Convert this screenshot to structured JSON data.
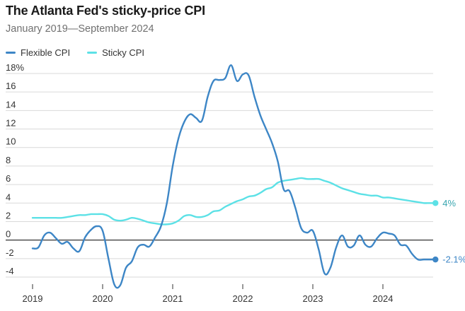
{
  "title": "The Atlanta Fed's sticky-price CPI",
  "subtitle": "January 2019—September 2024",
  "legend": {
    "flexible_label": "Flexible CPI",
    "sticky_label": "Sticky CPI"
  },
  "colors": {
    "flexible": "#3d86c6",
    "sticky": "#5ce1e6",
    "grid": "#d9d9d9",
    "zero_line": "#333333",
    "axis_text": "#333333",
    "end_label_flexible": "#3d86c6",
    "end_label_sticky": "#3aa6b0"
  },
  "chart_data": {
    "type": "line",
    "title": "The Atlanta Fed's sticky-price CPI",
    "subtitle": "January 2019—September 2024",
    "xlabel": "",
    "ylabel": "",
    "x_range": [
      2019.0,
      2024.75
    ],
    "ylim": [
      -4,
      18
    ],
    "y_ticks": [
      -4,
      -2,
      0,
      2,
      4,
      6,
      8,
      10,
      12,
      14,
      16,
      18
    ],
    "y_tick_labels": [
      "-4",
      "-2",
      "0",
      "2",
      "4",
      "6",
      "8",
      "10",
      "12",
      "14",
      "16",
      "18%"
    ],
    "x_ticks": [
      2019,
      2020,
      2021,
      2022,
      2023,
      2024
    ],
    "x_tick_labels": [
      "2019",
      "2020",
      "2021",
      "2022",
      "2023",
      "2024"
    ],
    "grid": true,
    "legend_position": "top-left",
    "series": [
      {
        "name": "Flexible CPI",
        "end_label": "-2.1%",
        "x": [
          2019.0,
          2019.083,
          2019.167,
          2019.25,
          2019.333,
          2019.417,
          2019.5,
          2019.583,
          2019.667,
          2019.75,
          2019.833,
          2019.917,
          2020.0,
          2020.083,
          2020.167,
          2020.25,
          2020.333,
          2020.417,
          2020.5,
          2020.583,
          2020.667,
          2020.75,
          2020.833,
          2020.917,
          2021.0,
          2021.083,
          2021.167,
          2021.25,
          2021.333,
          2021.417,
          2021.5,
          2021.583,
          2021.667,
          2021.75,
          2021.833,
          2021.917,
          2022.0,
          2022.083,
          2022.167,
          2022.25,
          2022.333,
          2022.417,
          2022.5,
          2022.583,
          2022.667,
          2022.75,
          2022.833,
          2022.917,
          2023.0,
          2023.083,
          2023.167,
          2023.25,
          2023.333,
          2023.417,
          2023.5,
          2023.583,
          2023.667,
          2023.75,
          2023.833,
          2023.917,
          2024.0,
          2024.083,
          2024.167,
          2024.25,
          2024.333,
          2024.417,
          2024.5,
          2024.583,
          2024.667,
          2024.75
        ],
        "values": [
          -0.9,
          -0.8,
          0.5,
          0.8,
          0.2,
          -0.4,
          -0.2,
          -0.9,
          -1.2,
          0.3,
          1.1,
          1.5,
          1.0,
          -2.0,
          -4.8,
          -4.9,
          -3.0,
          -2.3,
          -0.8,
          -0.5,
          -0.7,
          0.3,
          1.5,
          4.0,
          8.0,
          11.0,
          12.8,
          13.6,
          13.2,
          12.9,
          15.5,
          17.2,
          17.3,
          17.5,
          18.9,
          17.2,
          17.9,
          17.8,
          15.5,
          13.5,
          12.0,
          10.5,
          8.5,
          5.5,
          5.3,
          3.5,
          1.3,
          0.8,
          1.0,
          -1.0,
          -3.6,
          -3.0,
          -0.8,
          0.5,
          -0.7,
          -0.6,
          0.5,
          -0.5,
          -0.7,
          0.2,
          0.8,
          0.7,
          0.5,
          -0.5,
          -0.6,
          -1.5,
          -2.1,
          -2.1,
          -2.1,
          -2.1
        ]
      },
      {
        "name": "Sticky CPI",
        "end_label": "4%",
        "x": [
          2019.0,
          2019.083,
          2019.167,
          2019.25,
          2019.333,
          2019.417,
          2019.5,
          2019.583,
          2019.667,
          2019.75,
          2019.833,
          2019.917,
          2020.0,
          2020.083,
          2020.167,
          2020.25,
          2020.333,
          2020.417,
          2020.5,
          2020.583,
          2020.667,
          2020.75,
          2020.833,
          2020.917,
          2021.0,
          2021.083,
          2021.167,
          2021.25,
          2021.333,
          2021.417,
          2021.5,
          2021.583,
          2021.667,
          2021.75,
          2021.833,
          2021.917,
          2022.0,
          2022.083,
          2022.167,
          2022.25,
          2022.333,
          2022.417,
          2022.5,
          2022.583,
          2022.667,
          2022.75,
          2022.833,
          2022.917,
          2023.0,
          2023.083,
          2023.167,
          2023.25,
          2023.333,
          2023.417,
          2023.5,
          2023.583,
          2023.667,
          2023.75,
          2023.833,
          2023.917,
          2024.0,
          2024.083,
          2024.167,
          2024.25,
          2024.333,
          2024.417,
          2024.5,
          2024.583,
          2024.667,
          2024.75
        ],
        "values": [
          2.4,
          2.4,
          2.4,
          2.4,
          2.4,
          2.4,
          2.5,
          2.6,
          2.7,
          2.7,
          2.8,
          2.8,
          2.8,
          2.6,
          2.2,
          2.1,
          2.2,
          2.4,
          2.3,
          2.1,
          1.9,
          1.8,
          1.7,
          1.7,
          1.8,
          2.1,
          2.6,
          2.7,
          2.5,
          2.5,
          2.7,
          3.1,
          3.2,
          3.6,
          3.9,
          4.2,
          4.4,
          4.7,
          4.8,
          5.1,
          5.5,
          5.7,
          6.2,
          6.4,
          6.5,
          6.6,
          6.7,
          6.6,
          6.6,
          6.6,
          6.4,
          6.2,
          5.9,
          5.6,
          5.4,
          5.2,
          5.0,
          4.9,
          4.8,
          4.8,
          4.6,
          4.6,
          4.5,
          4.4,
          4.3,
          4.2,
          4.1,
          4.0,
          4.0,
          4.0
        ]
      }
    ]
  }
}
